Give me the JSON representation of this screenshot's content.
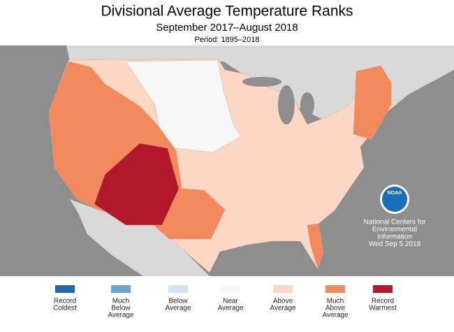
{
  "header": {
    "title": "Divisional Average Temperature Ranks",
    "subtitle": "September 2017–August 2018",
    "period": "Period: 1895–2018"
  },
  "legend": [
    {
      "lines": [
        "Record",
        "Coldest"
      ],
      "color": "#2166ac"
    },
    {
      "lines": [
        "Much",
        "Below",
        "Average"
      ],
      "color": "#6ba6d3"
    },
    {
      "lines": [
        "Below",
        "Average"
      ],
      "color": "#d1e5f0"
    },
    {
      "lines": [
        "Near",
        "Average"
      ],
      "color": "#f7f7f7"
    },
    {
      "lines": [
        "Above",
        "Average"
      ],
      "color": "#fcd8c4"
    },
    {
      "lines": [
        "Much",
        "Above",
        "Average"
      ],
      "color": "#f4895e"
    },
    {
      "lines": [
        "Record",
        "Warmest"
      ],
      "color": "#b2182b"
    }
  ],
  "credit": {
    "logo": "NOAA",
    "lines": [
      "National Centers for",
      "Environmental",
      "Information",
      "Wed Sep  5 2018"
    ]
  }
}
